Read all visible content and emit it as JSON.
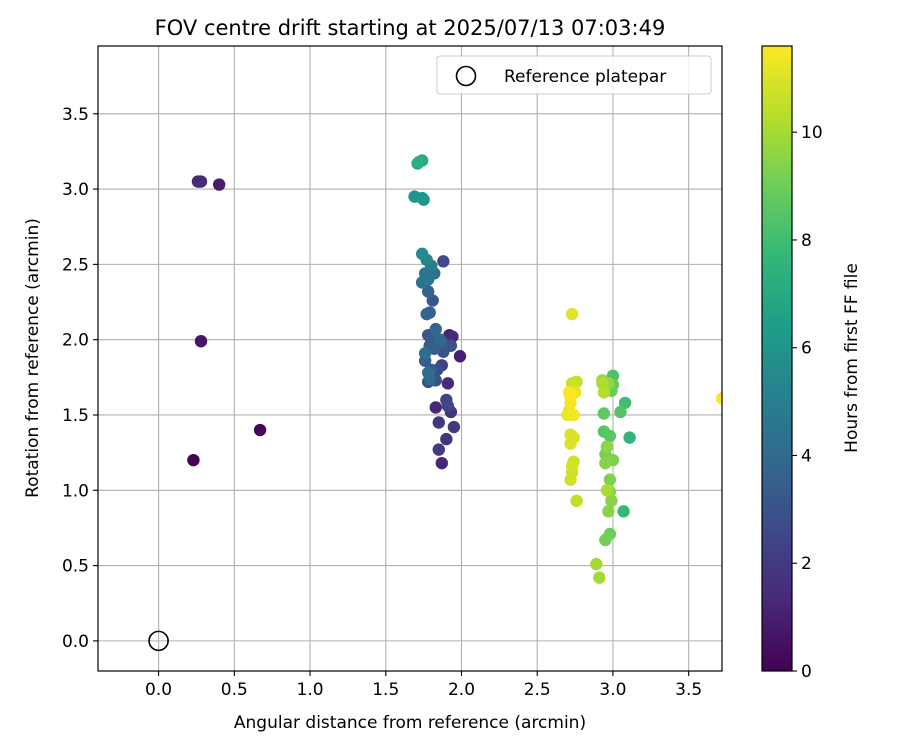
{
  "chart_data": {
    "type": "scatter",
    "title": "FOV centre drift starting at 2025/07/13 07:03:49",
    "xlabel": "Angular distance from reference (arcmin)",
    "ylabel": "Rotation from reference (arcmin)",
    "xlim": [
      -0.4,
      3.72
    ],
    "ylim": [
      -0.2,
      3.95
    ],
    "xticks": [
      0.0,
      0.5,
      1.0,
      1.5,
      2.0,
      2.5,
      3.0,
      3.5
    ],
    "yticks": [
      0.0,
      0.5,
      1.0,
      1.5,
      2.0,
      2.5,
      3.0,
      3.5
    ],
    "xtick_labels": [
      "0.0",
      "0.5",
      "1.0",
      "1.5",
      "2.0",
      "2.5",
      "3.0",
      "3.5"
    ],
    "ytick_labels": [
      "0.0",
      "0.5",
      "1.0",
      "1.5",
      "2.0",
      "2.5",
      "3.0",
      "3.5"
    ],
    "grid": true,
    "legend": {
      "position": "top-right",
      "entries": [
        {
          "label": "Reference platepar",
          "marker": "open-circle",
          "color": "#000000"
        }
      ]
    },
    "colorbar": {
      "label": "Hours from first FF file",
      "range": [
        0,
        11.6
      ],
      "ticks": [
        0,
        2,
        4,
        6,
        8,
        10
      ],
      "tick_labels": [
        "0",
        "2",
        "4",
        "6",
        "8",
        "10"
      ],
      "colormap": "viridis",
      "colors": [
        "#440154",
        "#482878",
        "#3e4989",
        "#31688e",
        "#26828e",
        "#1f9e89",
        "#35b779",
        "#6ece58",
        "#b5de2b",
        "#fde725"
      ]
    },
    "reference_point": {
      "x": 0.0,
      "y": 0.0
    },
    "series": [
      {
        "columns": [
          "x",
          "y",
          "hours"
        ],
        "points": [
          [
            0.23,
            1.2,
            0.1
          ],
          [
            0.67,
            1.4,
            0.2
          ],
          [
            0.28,
            1.99,
            0.7
          ],
          [
            0.4,
            3.03,
            0.9
          ],
          [
            0.26,
            3.05,
            1.2
          ],
          [
            0.27,
            3.05,
            1.3
          ],
          [
            0.28,
            3.05,
            1.4
          ],
          [
            1.99,
            1.89,
            1.0
          ],
          [
            1.92,
            2.03,
            1.1
          ],
          [
            1.87,
            1.18,
            1.3
          ],
          [
            1.83,
            1.55,
            1.3
          ],
          [
            1.91,
            1.71,
            1.4
          ],
          [
            1.94,
            2.02,
            1.5
          ],
          [
            1.9,
            1.34,
            1.8
          ],
          [
            1.93,
            1.52,
            1.8
          ],
          [
            1.85,
            1.45,
            1.9
          ],
          [
            1.88,
            1.94,
            1.9
          ],
          [
            1.95,
            1.42,
            2.0
          ],
          [
            1.85,
            1.27,
            2.1
          ],
          [
            1.87,
            1.83,
            2.3
          ],
          [
            1.9,
            1.6,
            2.4
          ],
          [
            1.91,
            1.56,
            2.5
          ],
          [
            1.88,
            2.52,
            2.6
          ],
          [
            1.84,
            1.8,
            2.7
          ],
          [
            1.78,
            1.72,
            2.8
          ],
          [
            1.83,
            1.73,
            2.9
          ],
          [
            1.88,
            1.92,
            3.0
          ],
          [
            1.93,
            1.96,
            3.0
          ],
          [
            1.78,
            2.03,
            3.1
          ],
          [
            1.81,
            2.26,
            3.2
          ],
          [
            1.79,
            1.96,
            3.2
          ],
          [
            1.8,
            1.8,
            3.3
          ],
          [
            1.76,
            1.86,
            3.4
          ],
          [
            1.8,
            2.0,
            3.4
          ],
          [
            1.82,
            1.94,
            3.5
          ],
          [
            1.86,
            1.98,
            3.5
          ],
          [
            1.78,
            2.32,
            3.6
          ],
          [
            1.79,
            2.18,
            3.7
          ],
          [
            1.77,
            2.17,
            3.8
          ],
          [
            1.83,
            2.07,
            3.8
          ],
          [
            1.86,
            2.0,
            3.9
          ],
          [
            1.79,
            1.74,
            4.0
          ],
          [
            1.78,
            1.78,
            4.1
          ],
          [
            1.76,
            1.91,
            4.2
          ],
          [
            1.82,
            2.44,
            4.3
          ],
          [
            1.74,
            2.38,
            4.4
          ],
          [
            1.76,
            2.44,
            4.5
          ],
          [
            1.78,
            2.4,
            4.6
          ],
          [
            1.8,
            2.49,
            4.8
          ],
          [
            1.77,
            2.53,
            5.3
          ],
          [
            1.74,
            2.57,
            5.6
          ],
          [
            1.75,
            2.93,
            5.8
          ],
          [
            1.69,
            2.95,
            6.0
          ],
          [
            1.74,
            2.94,
            6.1
          ],
          [
            1.71,
            3.17,
            6.8
          ],
          [
            1.74,
            3.19,
            7.0
          ],
          [
            1.72,
            3.18,
            7.3
          ],
          [
            3.11,
            1.35,
            7.6
          ],
          [
            3.07,
            0.86,
            7.8
          ],
          [
            3.08,
            1.58,
            8.0
          ],
          [
            3.0,
            1.76,
            8.3
          ],
          [
            3.05,
            1.52,
            8.4
          ],
          [
            2.94,
            1.39,
            8.5
          ],
          [
            2.98,
            1.36,
            8.6
          ],
          [
            2.94,
            1.51,
            8.7
          ],
          [
            3.0,
            1.7,
            8.8
          ],
          [
            2.99,
            1.66,
            8.9
          ],
          [
            2.98,
            0.71,
            9.0
          ],
          [
            2.95,
            0.67,
            9.1
          ],
          [
            2.95,
            1.24,
            9.2
          ],
          [
            2.98,
            1.07,
            9.3
          ],
          [
            3.0,
            1.2,
            9.3
          ],
          [
            2.95,
            1.18,
            9.4
          ],
          [
            2.98,
            0.99,
            9.4
          ],
          [
            2.97,
            0.86,
            9.5
          ],
          [
            2.99,
            0.93,
            9.5
          ],
          [
            2.96,
            1.29,
            9.6
          ],
          [
            2.97,
            1.71,
            9.7
          ],
          [
            2.93,
            1.73,
            9.8
          ],
          [
            2.91,
            0.42,
            10.0
          ],
          [
            2.89,
            0.51,
            10.0
          ],
          [
            2.96,
            1.0,
            10.1
          ],
          [
            2.93,
            1.71,
            10.2
          ],
          [
            2.94,
            1.65,
            10.3
          ],
          [
            2.76,
            0.93,
            10.5
          ],
          [
            2.76,
            1.72,
            10.6
          ],
          [
            2.73,
            1.71,
            10.7
          ],
          [
            2.73,
            1.12,
            10.7
          ],
          [
            2.74,
            1.19,
            10.8
          ],
          [
            2.72,
            1.07,
            10.8
          ],
          [
            2.73,
            1.16,
            10.9
          ],
          [
            2.74,
            1.35,
            10.9
          ],
          [
            2.72,
            1.31,
            11.0
          ],
          [
            2.72,
            1.37,
            11.0
          ],
          [
            2.73,
            2.17,
            11.1
          ],
          [
            2.75,
            1.65,
            11.2
          ],
          [
            2.71,
            1.53,
            11.3
          ],
          [
            2.7,
            1.5,
            11.3
          ],
          [
            2.72,
            1.58,
            11.4
          ],
          [
            2.74,
            1.5,
            11.4
          ],
          [
            2.72,
            1.62,
            11.5
          ],
          [
            2.72,
            1.64,
            11.5
          ],
          [
            2.71,
            1.65,
            11.6
          ],
          [
            3.72,
            1.61,
            11.6
          ]
        ]
      }
    ]
  }
}
